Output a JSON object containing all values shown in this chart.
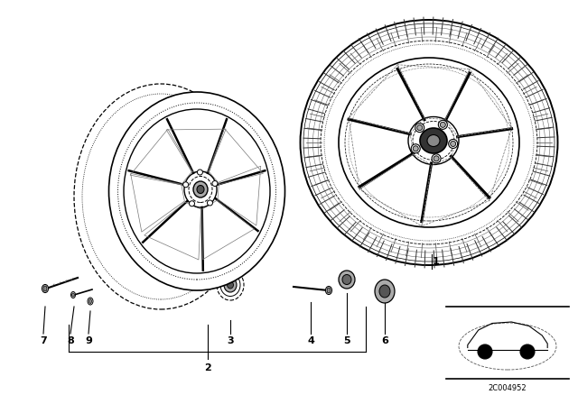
{
  "background_color": "#ffffff",
  "fig_width": 6.4,
  "fig_height": 4.48,
  "part_code": "2C004952",
  "label_fontsize": 8,
  "label_color": "black",
  "line_color": "black",
  "gray": "#888888",
  "darkgray": "#555555",
  "lightgray": "#cccccc"
}
